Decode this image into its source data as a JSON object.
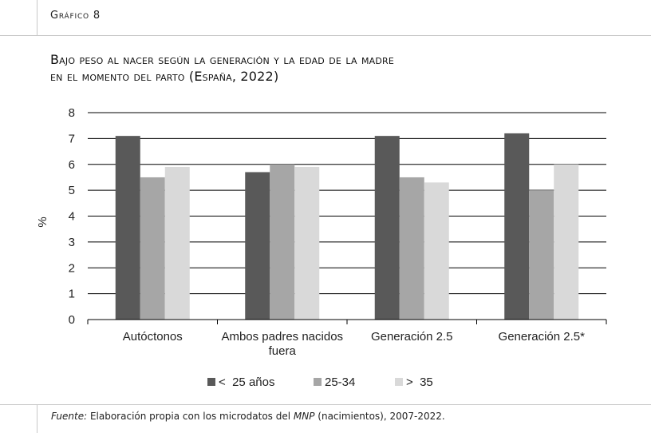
{
  "header": {
    "kicker": "Gráfico 8"
  },
  "title_lines": [
    "Bajo peso al nacer según la generación y la edad de la madre",
    "en el momento del parto (España, 2022)"
  ],
  "source": {
    "label": "Fuente:",
    "text_before": " Elaboración propia con los microdatos del ",
    "em": "MNP",
    "text_after": " (nacimientos), 2007-2022."
  },
  "chart_data": {
    "type": "bar",
    "categories": [
      [
        "Autóctonos"
      ],
      [
        "Ambos padres nacidos",
        "fuera"
      ],
      [
        "Generación 2.5"
      ],
      [
        "Generación 2.5*"
      ]
    ],
    "series": [
      {
        "name": "<  25 años",
        "color": "#595959",
        "values": [
          7.1,
          5.7,
          7.1,
          7.2
        ]
      },
      {
        "name": "25-34",
        "color": "#a6a6a6",
        "values": [
          5.5,
          6.0,
          5.5,
          5.0
        ]
      },
      {
        "name": ">  35",
        "color": "#d9d9d9",
        "values": [
          5.9,
          5.9,
          5.3,
          6.0
        ]
      }
    ],
    "ylabel": "%",
    "ylim": [
      0,
      8
    ],
    "yticks": [
      0,
      1,
      2,
      3,
      4,
      5,
      6,
      7,
      8
    ],
    "grid": true,
    "legend_position": "bottom"
  }
}
